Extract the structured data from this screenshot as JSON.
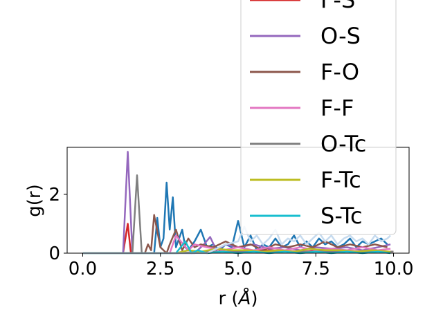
{
  "chart_data": {
    "type": "line",
    "xlabel_prefix": "r (",
    "xlabel_unit": "Å",
    "xlabel_suffix": ")",
    "ylabel": "g(r)",
    "xlim": [
      -0.5,
      10.5
    ],
    "ylim": [
      0,
      3.6
    ],
    "xticks": [
      0.0,
      2.5,
      5.0,
      7.5,
      10.0
    ],
    "xtick_labels": [
      "0.0",
      "2.5",
      "5.0",
      "7.5",
      "10.0"
    ],
    "yticks": [
      0,
      2
    ],
    "ytick_labels": [
      "0",
      "2"
    ],
    "grid": false,
    "legend_placement": "upper-right, extending above the axes",
    "series": [
      {
        "name": "",
        "color": "#1f77b4",
        "x": [
          0.0,
          1.0,
          2.0,
          2.3,
          2.4,
          2.5,
          2.6,
          2.7,
          2.8,
          2.9,
          3.0,
          3.2,
          3.3,
          3.4,
          3.6,
          3.8,
          4.0,
          4.2,
          4.4,
          4.6,
          4.8,
          5.0,
          5.2,
          5.4,
          5.6,
          5.8,
          6.0,
          6.2,
          6.4,
          6.6,
          6.8,
          7.0,
          7.2,
          7.4,
          7.6,
          7.8,
          8.0,
          8.2,
          8.4,
          8.6,
          8.8,
          9.0,
          9.2,
          9.4,
          9.6,
          9.8
        ],
        "y": [
          0,
          0,
          0,
          0,
          1.2,
          0.2,
          0.5,
          2.4,
          0.8,
          1.9,
          0.2,
          0.8,
          0.2,
          0.1,
          0.4,
          0.8,
          0.2,
          0.3,
          0.1,
          0.3,
          0.2,
          1.1,
          0.2,
          0.6,
          0.1,
          0.3,
          0.2,
          0.5,
          0.2,
          0.3,
          0.6,
          0.2,
          0.4,
          0.2,
          0.5,
          0.3,
          0.4,
          0.2,
          0.3,
          0.5,
          0.2,
          0.4,
          0.3,
          0.4,
          0.5,
          0.3
        ]
      },
      {
        "name": "F-S",
        "color": "#d62728",
        "x": [
          0.0,
          1.3,
          1.45,
          1.55,
          1.7,
          3.0,
          4.0,
          5.0,
          6.0,
          7.0,
          8.0,
          9.0,
          10.0
        ],
        "y": [
          0,
          0,
          1.0,
          0,
          0,
          0,
          0.05,
          0.05,
          0.1,
          0.05,
          0.1,
          0.05,
          0.05
        ]
      },
      {
        "name": "O-S",
        "color": "#9467bd",
        "x": [
          0.0,
          1.3,
          1.45,
          1.6,
          2.0,
          3.6,
          3.9,
          4.1,
          4.3,
          4.6,
          5.0,
          5.5,
          6.0,
          6.5,
          7.0,
          7.5,
          8.0,
          8.5,
          9.0,
          9.5,
          9.9
        ],
        "y": [
          0,
          0,
          3.45,
          0,
          0,
          0,
          0.3,
          0.55,
          0.1,
          0.3,
          0.2,
          0.3,
          0.15,
          0.2,
          0.1,
          0.2,
          0.15,
          0.2,
          0.1,
          0.2,
          0.3
        ]
      },
      {
        "name": "F-O",
        "color": "#8c564b",
        "x": [
          0.0,
          2.0,
          2.1,
          2.2,
          2.3,
          2.5,
          2.7,
          2.8,
          3.0,
          3.2,
          3.4,
          3.6,
          3.8,
          4.2,
          4.6,
          5.0,
          5.4,
          5.8,
          6.2,
          6.6,
          7.0,
          7.4,
          7.8,
          8.2,
          8.6,
          9.0,
          9.4,
          9.8
        ],
        "y": [
          0,
          0,
          0.3,
          0.1,
          1.3,
          0.2,
          0,
          0.3,
          0.8,
          0.1,
          0.5,
          0.2,
          0.3,
          0.2,
          0.4,
          0.2,
          0.3,
          0.1,
          0.3,
          0.2,
          0.3,
          0.2,
          0.4,
          0.2,
          0.3,
          0.2,
          0.3,
          0.2
        ]
      },
      {
        "name": "F-F",
        "color": "#e377c2",
        "x": [
          0.0,
          2.0,
          2.8,
          3.0,
          3.4,
          3.6,
          4.0,
          4.5,
          5.0,
          5.5,
          6.0,
          6.5,
          7.0,
          7.5,
          8.0,
          8.5,
          9.0,
          9.5,
          9.9
        ],
        "y": [
          0,
          0,
          0,
          0.6,
          0.1,
          0.3,
          0.2,
          0.1,
          0.2,
          0.1,
          0.2,
          0.1,
          0.2,
          0.1,
          0.15,
          0.1,
          0.2,
          0.1,
          0.15
        ]
      },
      {
        "name": "O-Tc",
        "color": "#7f7f7f",
        "x": [
          0.0,
          1.5,
          1.6,
          1.75,
          1.9,
          2.2,
          3.0,
          4.0,
          5.0,
          6.0,
          7.0,
          8.0,
          9.0,
          10.0
        ],
        "y": [
          0,
          0,
          0,
          2.65,
          0,
          0,
          0,
          0.05,
          0.05,
          0.05,
          0.05,
          0.05,
          0.05,
          0.05
        ]
      },
      {
        "name": "F-Tc",
        "color": "#bcbd22",
        "x": [
          0.0,
          3.0,
          3.4,
          3.8,
          4.3,
          4.8,
          5.3,
          5.8,
          6.3,
          6.8,
          7.3,
          7.8,
          8.3,
          8.8,
          9.3,
          9.9
        ],
        "y": [
          0,
          0,
          0.1,
          0.05,
          0.15,
          0.1,
          0.1,
          0.05,
          0.1,
          0.05,
          0.15,
          0.1,
          0.1,
          0.05,
          0.1,
          0.05
        ]
      },
      {
        "name": "S-Tc",
        "color": "#17becf",
        "x": [
          0.0,
          3.0,
          3.3,
          3.5,
          3.7,
          4.0,
          4.5,
          5.0,
          5.5,
          6.0,
          6.5,
          7.0,
          7.5,
          8.0,
          8.5,
          9.0,
          9.5,
          9.9
        ],
        "y": [
          0,
          0,
          0.4,
          0,
          0.1,
          0,
          0.05,
          0,
          0.05,
          0,
          0.05,
          0,
          0.05,
          0,
          0.05,
          0,
          0.05,
          0
        ]
      },
      {
        "name": "",
        "color": "#c6dbef",
        "x": [
          0.0,
          4.0,
          4.6,
          5.0,
          5.2,
          5.4,
          5.6,
          5.8,
          6.0,
          6.2,
          6.4,
          6.6,
          6.8,
          7.0,
          7.2,
          7.4,
          7.6,
          7.8,
          8.0,
          8.2,
          8.4,
          8.6,
          8.8,
          9.0,
          9.2,
          9.4,
          9.6,
          9.8,
          9.9
        ],
        "y": [
          0,
          0,
          0.3,
          0.4,
          0.9,
          0.4,
          0.6,
          0.3,
          0.5,
          0.8,
          0.3,
          0.5,
          0.4,
          0.6,
          0.3,
          0.5,
          0.7,
          0.4,
          0.6,
          0.3,
          0.5,
          0.6,
          0.4,
          0.5,
          0.3,
          0.6,
          0.4,
          0.5,
          0.6
        ]
      }
    ]
  }
}
